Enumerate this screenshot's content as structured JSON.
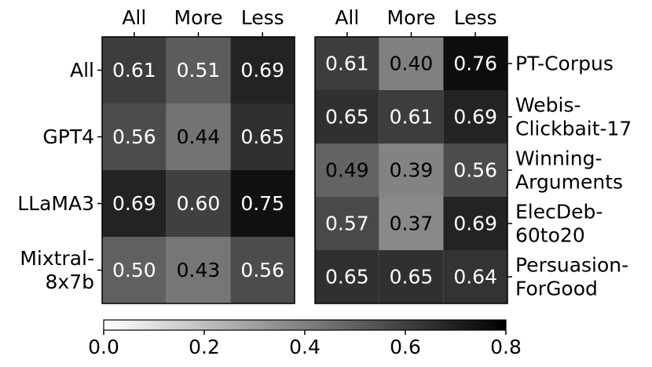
{
  "chart_data": [
    {
      "type": "heatmap",
      "columns": [
        "All",
        "More",
        "Less"
      ],
      "rows": [
        "All",
        "GPT4",
        "LLaMA3",
        "Mixtral-8x7b"
      ],
      "row_label_lines": [
        [
          "All"
        ],
        [
          "GPT4"
        ],
        [
          "LLaMA3"
        ],
        [
          "Mixtral-",
          "8x7b"
        ]
      ],
      "values": [
        [
          0.61,
          0.51,
          0.69
        ],
        [
          0.56,
          0.44,
          0.65
        ],
        [
          0.69,
          0.6,
          0.75
        ],
        [
          0.5,
          0.43,
          0.56
        ]
      ]
    },
    {
      "type": "heatmap",
      "columns": [
        "All",
        "More",
        "Less"
      ],
      "rows": [
        "PT-Corpus",
        "Webis-Clickbait-17",
        "Winning-Arguments",
        "ElecDeb-60to20",
        "Persuasion-ForGood"
      ],
      "row_label_lines": [
        [
          "PT-Corpus"
        ],
        [
          "Webis-",
          "Clickbait-17"
        ],
        [
          "Winning-",
          "Arguments"
        ],
        [
          "ElecDeb-",
          "60to20"
        ],
        [
          "Persuasion-",
          "ForGood"
        ]
      ],
      "values": [
        [
          0.61,
          0.4,
          0.76
        ],
        [
          0.65,
          0.61,
          0.69
        ],
        [
          0.49,
          0.39,
          0.56
        ],
        [
          0.57,
          0.37,
          0.69
        ],
        [
          0.65,
          0.65,
          0.64
        ]
      ]
    }
  ],
  "colorbar": {
    "range": [
      0.0,
      0.8
    ],
    "ticks": [
      "0.0",
      "0.2",
      "0.4",
      "0.6",
      "0.8"
    ],
    "colormap": "white-to-black"
  }
}
